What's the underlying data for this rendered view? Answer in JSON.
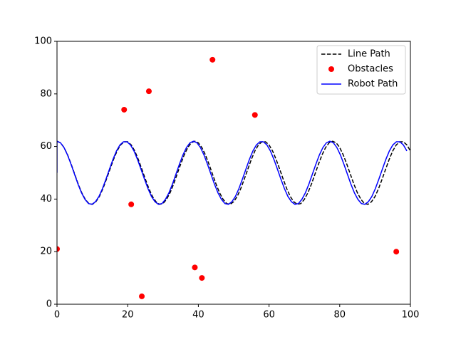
{
  "chart_data": {
    "type": "line",
    "xlim": [
      0,
      100
    ],
    "ylim": [
      0,
      100
    ],
    "xticks": [
      0,
      20,
      40,
      60,
      80,
      100
    ],
    "yticks": [
      0,
      20,
      40,
      60,
      80,
      100
    ],
    "legend": "upper right",
    "series": [
      {
        "name": "Line Path",
        "type": "line",
        "style": "dashed",
        "color": "#000000",
        "x": [
          0,
          1,
          2,
          3,
          4,
          5,
          6,
          7,
          8,
          9,
          10,
          11,
          12,
          13,
          14,
          15,
          16,
          17,
          18,
          19,
          20,
          21,
          22,
          23,
          24,
          25,
          26,
          27,
          28,
          29,
          30,
          31,
          32,
          33,
          34,
          35,
          36,
          37,
          38,
          39,
          40,
          41,
          42,
          43,
          44,
          45,
          46,
          47,
          48,
          49,
          50,
          51,
          52,
          53,
          54,
          55,
          56,
          57,
          58,
          59,
          60,
          61,
          62,
          63,
          64,
          65,
          66,
          67,
          68,
          69,
          70,
          71,
          72,
          73,
          74,
          75,
          76,
          77,
          78,
          79,
          80,
          81,
          82,
          83,
          84,
          85,
          86,
          87,
          88,
          89,
          90,
          91,
          92,
          93,
          94,
          95,
          96,
          97,
          98,
          99,
          100
        ],
        "values": [
          62,
          61.4,
          59.6,
          56.8,
          53.3,
          49.5,
          45.7,
          42.4,
          39.9,
          38.3,
          38.0,
          39.0,
          41.0,
          44.0,
          47.6,
          51.4,
          55.1,
          58.3,
          60.6,
          61.8,
          61.8,
          60.6,
          58.3,
          55.1,
          51.4,
          47.6,
          44.0,
          41.0,
          39.0,
          38.0,
          38.3,
          39.9,
          42.4,
          45.7,
          49.5,
          53.3,
          56.8,
          59.6,
          61.4,
          62,
          61.4,
          59.6,
          56.8,
          53.3,
          49.5,
          45.7,
          42.4,
          39.9,
          38.3,
          38.0,
          39.0,
          41.0,
          44.0,
          47.6,
          51.4,
          55.1,
          58.3,
          60.6,
          61.8,
          61.8,
          60.6,
          58.3,
          55.1,
          51.4,
          47.6,
          44.0,
          41.0,
          39.0,
          38.0,
          38.3,
          39.9,
          42.4,
          45.7,
          49.5,
          53.3,
          56.8,
          59.6,
          61.4,
          62,
          61.4,
          59.6,
          56.8,
          53.3,
          49.5,
          45.7,
          42.4,
          39.9,
          38.3,
          38.0,
          39.0,
          41.0,
          44.0,
          47.6,
          51.4,
          55.1,
          58.3,
          60.6,
          61.8,
          61.8,
          60.6,
          58.3
        ]
      },
      {
        "name": "Obstacles",
        "type": "scatter",
        "color": "#ff0000",
        "x": [
          0,
          19,
          26,
          44,
          56,
          21,
          39,
          41,
          24,
          96
        ],
        "values": [
          21,
          74,
          81,
          93,
          72,
          38,
          14,
          10,
          3,
          20
        ]
      },
      {
        "name": "Robot Path",
        "type": "line",
        "style": "solid",
        "color": "#0000ff",
        "x": [
          0,
          0,
          0.99,
          1.98,
          2.97,
          3.96,
          4.95,
          5.94,
          6.93,
          7.92,
          8.91,
          9.9,
          10.89,
          11.88,
          12.87,
          13.86,
          14.85,
          15.84,
          16.83,
          17.82,
          18.81,
          19.8,
          20.79,
          21.78,
          22.77,
          23.76,
          24.75,
          25.74,
          26.73,
          27.72,
          28.71,
          29.7,
          30.69,
          31.68,
          32.67,
          33.66,
          34.65,
          35.64,
          36.63,
          37.62,
          38.61,
          39.6,
          40.59,
          41.58,
          42.57,
          43.56,
          44.55,
          45.54,
          46.53,
          47.52,
          48.51,
          49.5,
          50.49,
          51.48,
          52.47,
          53.46,
          54.45,
          55.44,
          56.43,
          57.42,
          58.41,
          59.4,
          60.39,
          61.38,
          62.37,
          63.36,
          64.35,
          65.34,
          66.33,
          67.32,
          68.31,
          69.3,
          70.29,
          71.28,
          72.27,
          73.26,
          74.25,
          75.24,
          76.23,
          77.22,
          78.21,
          79.2,
          80.19,
          81.18,
          82.17,
          83.16,
          84.15,
          85.14,
          86.13,
          87.12,
          88.11,
          89.1,
          90.09,
          91.08,
          92.07,
          93.06,
          94.05,
          95.04,
          96.03,
          97.02,
          98.01,
          99
        ],
        "values": [
          50,
          62,
          61.4,
          59.6,
          56.8,
          53.3,
          49.5,
          45.7,
          42.4,
          39.9,
          38.3,
          38.0,
          39.0,
          41.0,
          44.0,
          47.6,
          51.4,
          55.1,
          58.3,
          60.6,
          61.8,
          61.8,
          60.6,
          58.3,
          55.1,
          51.4,
          47.6,
          44.0,
          41.0,
          39.0,
          38.0,
          38.3,
          39.9,
          42.4,
          45.7,
          49.5,
          53.3,
          56.8,
          59.6,
          61.4,
          62,
          61.4,
          59.6,
          56.8,
          53.3,
          49.5,
          45.7,
          42.4,
          39.9,
          38.3,
          38.0,
          39.0,
          41.0,
          44.0,
          47.6,
          51.4,
          55.1,
          58.3,
          60.6,
          61.8,
          61.8,
          60.6,
          58.3,
          55.1,
          51.4,
          47.6,
          44.0,
          41.0,
          39.0,
          38.0,
          38.3,
          39.9,
          42.4,
          45.7,
          49.5,
          53.3,
          56.8,
          59.6,
          61.4,
          62,
          61.4,
          59.6,
          56.8,
          53.3,
          49.5,
          45.7,
          42.4,
          39.9,
          38.3,
          38.0,
          39.0,
          41.0,
          44.0,
          47.6,
          51.4,
          55.1,
          58.3,
          60.6,
          61.8,
          61.8,
          60.6,
          58.3
        ]
      }
    ]
  }
}
